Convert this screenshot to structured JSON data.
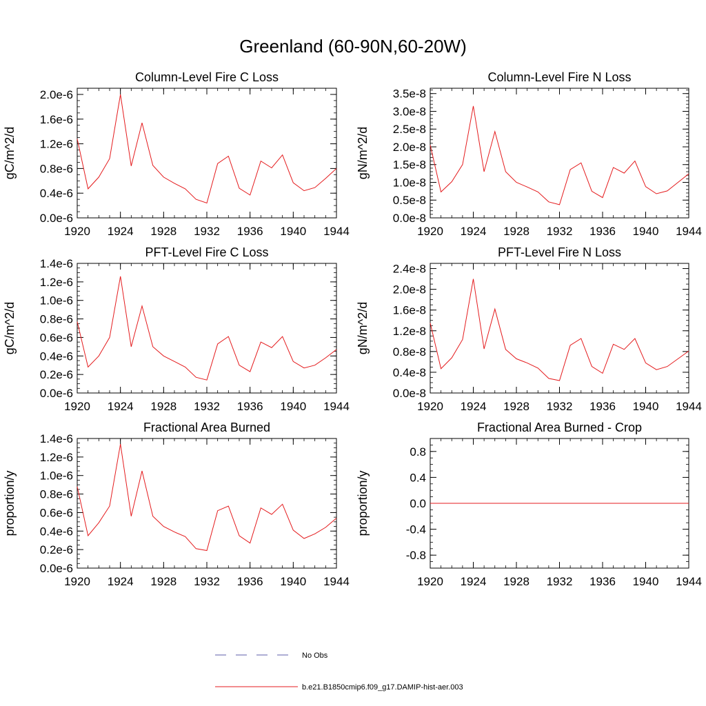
{
  "page_title": "Greenland (60-90N,60-20W)",
  "legend": {
    "placement": "bottom",
    "items": [
      {
        "label": "No Obs",
        "color": "#5b5ba8",
        "style": "dashed"
      },
      {
        "label": "b.e21.B1850cmip6.f09_g17.DAMIP-hist-aer.003",
        "color": "#e41a1c",
        "style": "solid"
      }
    ]
  },
  "line_color": "#e41a1c",
  "chart_data": [
    {
      "type": "line",
      "title": "Column-Level Fire C Loss",
      "ylabel": "gC/m^2/d",
      "xlim": [
        1920,
        1944
      ],
      "ylim": [
        0,
        2.1e-06
      ],
      "x_ticks": [
        "1920",
        "1924",
        "1928",
        "1932",
        "1936",
        "1940",
        "1944"
      ],
      "y_tick_values": [
        0,
        4e-07,
        8e-07,
        1.2e-06,
        1.6e-06,
        2e-06
      ],
      "y_tick_labels": [
        "0.0e-6",
        "0.4e-6",
        "0.8e-6",
        "1.2e-6",
        "1.6e-6",
        "2.0e-6"
      ],
      "y_minor_step": 1e-07,
      "x": [
        1920,
        1921,
        1922,
        1923,
        1924,
        1925,
        1926,
        1927,
        1928,
        1929,
        1930,
        1931,
        1932,
        1933,
        1934,
        1935,
        1936,
        1937,
        1938,
        1939,
        1940,
        1941,
        1942,
        1943,
        1944
      ],
      "series": [
        {
          "name": "b.e21.B1850cmip6.f09_g17.DAMIP-hist-aer.003",
          "values": [
            1.28e-06,
            4.7e-07,
            6.6e-07,
            9.6e-07,
            2e-06,
            8.4e-07,
            1.54e-06,
            8.5e-07,
            6.6e-07,
            5.6e-07,
            4.7e-07,
            3e-07,
            2.4e-07,
            8.8e-07,
            1e-06,
            4.8e-07,
            3.7e-07,
            9.2e-07,
            8.1e-07,
            1.02e-06,
            5.7e-07,
            4.4e-07,
            4.9e-07,
            6.4e-07,
            8e-07
          ]
        }
      ]
    },
    {
      "type": "line",
      "title": "Column-Level Fire N Loss",
      "ylabel": "gN/m^2/d",
      "xlim": [
        1920,
        1944
      ],
      "ylim": [
        0,
        3.65e-08
      ],
      "x_ticks": [
        "1920",
        "1924",
        "1928",
        "1932",
        "1936",
        "1940",
        "1944"
      ],
      "y_tick_values": [
        0,
        5e-09,
        1e-08,
        1.5e-08,
        2e-08,
        2.5e-08,
        3e-08,
        3.5e-08
      ],
      "y_tick_labels": [
        "0.0e-8",
        "0.5e-8",
        "1.0e-8",
        "1.5e-8",
        "2.0e-8",
        "2.5e-8",
        "3.0e-8",
        "3.5e-8"
      ],
      "y_minor_step": 1e-09,
      "x": [
        1920,
        1921,
        1922,
        1923,
        1924,
        1925,
        1926,
        1927,
        1928,
        1929,
        1930,
        1931,
        1932,
        1933,
        1934,
        1935,
        1936,
        1937,
        1938,
        1939,
        1940,
        1941,
        1942,
        1943,
        1944
      ],
      "series": [
        {
          "name": "b.e21.B1850cmip6.f09_g17.DAMIP-hist-aer.003",
          "values": [
            2.05e-08,
            7.3e-09,
            1.02e-08,
            1.5e-08,
            3.15e-08,
            1.3e-08,
            2.43e-08,
            1.3e-08,
            1e-08,
            8.7e-09,
            7.3e-09,
            4.5e-09,
            3.7e-09,
            1.36e-08,
            1.55e-08,
            7.5e-09,
            5.7e-09,
            1.42e-08,
            1.26e-08,
            1.6e-08,
            8.8e-09,
            6.8e-09,
            7.6e-09,
            1e-08,
            1.24e-08
          ]
        }
      ]
    },
    {
      "type": "line",
      "title": "PFT-Level Fire C Loss",
      "ylabel": "gC/m^2/d",
      "xlim": [
        1920,
        1944
      ],
      "ylim": [
        0,
        1.4e-06
      ],
      "x_ticks": [
        "1920",
        "1924",
        "1928",
        "1932",
        "1936",
        "1940",
        "1944"
      ],
      "y_tick_values": [
        0,
        2e-07,
        4e-07,
        6e-07,
        8e-07,
        1e-06,
        1.2e-06,
        1.4e-06
      ],
      "y_tick_labels": [
        "0.0e-6",
        "0.2e-6",
        "0.4e-6",
        "0.6e-6",
        "0.8e-6",
        "1.0e-6",
        "1.2e-6",
        "1.4e-6"
      ],
      "y_minor_step": 5e-08,
      "x": [
        1920,
        1921,
        1922,
        1923,
        1924,
        1925,
        1926,
        1927,
        1928,
        1929,
        1930,
        1931,
        1932,
        1933,
        1934,
        1935,
        1936,
        1937,
        1938,
        1939,
        1940,
        1941,
        1942,
        1943,
        1944
      ],
      "series": [
        {
          "name": "b.e21.B1850cmip6.f09_g17.DAMIP-hist-aer.003",
          "values": [
            7.7e-07,
            2.8e-07,
            4e-07,
            6e-07,
            1.26e-06,
            5e-07,
            9.4e-07,
            5e-07,
            4e-07,
            3.4e-07,
            2.8e-07,
            1.7e-07,
            1.4e-07,
            5.3e-07,
            6.1e-07,
            3e-07,
            2.3e-07,
            5.5e-07,
            4.9e-07,
            6.1e-07,
            3.4e-07,
            2.7e-07,
            3e-07,
            3.8e-07,
            4.7e-07
          ]
        }
      ]
    },
    {
      "type": "line",
      "title": "PFT-Level Fire N Loss",
      "ylabel": "gN/m^2/d",
      "xlim": [
        1920,
        1944
      ],
      "ylim": [
        0,
        2.5e-08
      ],
      "x_ticks": [
        "1920",
        "1924",
        "1928",
        "1932",
        "1936",
        "1940",
        "1944"
      ],
      "y_tick_values": [
        0,
        4e-09,
        8e-09,
        1.2e-08,
        1.6e-08,
        2e-08,
        2.4e-08
      ],
      "y_tick_labels": [
        "0.0e-8",
        "0.4e-8",
        "0.8e-8",
        "1.2e-8",
        "1.6e-8",
        "2.0e-8",
        "2.4e-8"
      ],
      "y_minor_step": 1e-09,
      "x": [
        1920,
        1921,
        1922,
        1923,
        1924,
        1925,
        1926,
        1927,
        1928,
        1929,
        1930,
        1931,
        1932,
        1933,
        1934,
        1935,
        1936,
        1937,
        1938,
        1939,
        1940,
        1941,
        1942,
        1943,
        1944
      ],
      "series": [
        {
          "name": "b.e21.B1850cmip6.f09_g17.DAMIP-hist-aer.003",
          "values": [
            1.35e-08,
            4.7e-09,
            6.8e-09,
            1.03e-08,
            2.2e-08,
            8.5e-09,
            1.62e-08,
            8.4e-09,
            6.6e-09,
            5.8e-09,
            4.8e-09,
            2.8e-09,
            2.4e-09,
            9.2e-09,
            1.05e-08,
            5.1e-09,
            3.8e-09,
            9.4e-09,
            8.4e-09,
            1.05e-08,
            5.8e-09,
            4.5e-09,
            5.1e-09,
            6.6e-09,
            8.1e-09
          ]
        }
      ]
    },
    {
      "type": "line",
      "title": "Fractional Area Burned",
      "ylabel": "proportion/y",
      "xlim": [
        1920,
        1944
      ],
      "ylim": [
        0,
        1.4e-06
      ],
      "x_ticks": [
        "1920",
        "1924",
        "1928",
        "1932",
        "1936",
        "1940",
        "1944"
      ],
      "y_tick_values": [
        0,
        2e-07,
        4e-07,
        6e-07,
        8e-07,
        1e-06,
        1.2e-06,
        1.4e-06
      ],
      "y_tick_labels": [
        "0.0e-6",
        "0.2e-6",
        "0.4e-6",
        "0.6e-6",
        "0.8e-6",
        "1.0e-6",
        "1.2e-6",
        "1.4e-6"
      ],
      "y_minor_step": 5e-08,
      "x": [
        1920,
        1921,
        1922,
        1923,
        1924,
        1925,
        1926,
        1927,
        1928,
        1929,
        1930,
        1931,
        1932,
        1933,
        1934,
        1935,
        1936,
        1937,
        1938,
        1939,
        1940,
        1941,
        1942,
        1943,
        1944
      ],
      "series": [
        {
          "name": "b.e21.B1850cmip6.f09_g17.DAMIP-hist-aer.003",
          "values": [
            8.8e-07,
            3.5e-07,
            4.9e-07,
            6.7e-07,
            1.34e-06,
            5.6e-07,
            1.05e-06,
            5.6e-07,
            4.5e-07,
            3.9e-07,
            3.4e-07,
            2.1e-07,
            1.9e-07,
            6.2e-07,
            6.7e-07,
            3.5e-07,
            2.7e-07,
            6.5e-07,
            5.8e-07,
            6.9e-07,
            4.1e-07,
            3.2e-07,
            3.7e-07,
            4.4e-07,
            5.4e-07
          ]
        }
      ]
    },
    {
      "type": "line",
      "title": "Fractional Area Burned - Crop",
      "ylabel": "proportion/y",
      "xlim": [
        1920,
        1944
      ],
      "ylim": [
        -1.0,
        1.0
      ],
      "x_ticks": [
        "1920",
        "1924",
        "1928",
        "1932",
        "1936",
        "1940",
        "1944"
      ],
      "y_tick_values": [
        -0.8,
        -0.4,
        0,
        0.4,
        0.8
      ],
      "y_tick_labels": [
        "-0.8",
        "-0.4",
        "0.0",
        "0.4",
        "0.8"
      ],
      "y_minor_step": 0.1,
      "x": [
        1920,
        1944
      ],
      "series": [
        {
          "name": "b.e21.B1850cmip6.f09_g17.DAMIP-hist-aer.003",
          "values": [
            0,
            0
          ]
        }
      ]
    }
  ]
}
